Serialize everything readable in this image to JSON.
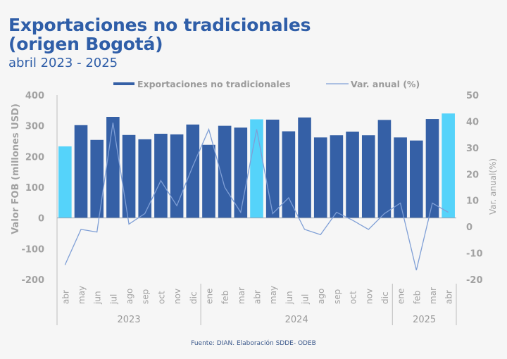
{
  "header": {
    "title_line1": "Exportaciones no tradicionales",
    "title_line2": "(origen Bogotá)",
    "subtitle": "abril 2023 - 2025"
  },
  "source": "Fuente: DIAN. Elaboración SDDE- ODEB",
  "chart_data": {
    "type": "bar",
    "title": "Exportaciones no tradicionales (origen Bogotá)",
    "subtitle": "abril 2023 - 2025",
    "categories": [
      "abr",
      "may",
      "jun",
      "jul",
      "ago",
      "sep",
      "oct",
      "nov",
      "dic",
      "ene",
      "feb",
      "mar",
      "abr",
      "may",
      "jun",
      "jul",
      "ago",
      "sep",
      "oct",
      "nov",
      "dic",
      "ene",
      "feb",
      "mar",
      "abr"
    ],
    "year_groups": [
      {
        "label": "2023",
        "count": 9
      },
      {
        "label": "2024",
        "count": 12
      },
      {
        "label": "2025",
        "count": 4
      }
    ],
    "highlight_indices": [
      0,
      12,
      24
    ],
    "colors": {
      "bar": "#3560a6",
      "highlight": "#55d3fa",
      "line": "#7f9fd6",
      "axis_text": "#a2a2a2"
    },
    "series": [
      {
        "name": "Exportaciones no tradicionales",
        "type": "bar",
        "axis": "left",
        "values": [
          233,
          302,
          254,
          329,
          270,
          256,
          274,
          272,
          304,
          238,
          300,
          294,
          321,
          320,
          282,
          327,
          262,
          269,
          281,
          269,
          319,
          262,
          252,
          322,
          340
        ]
      },
      {
        "name": "Var. anual (%)",
        "type": "line",
        "axis": "right",
        "values": [
          -14.5,
          -1,
          -2,
          39.5,
          1,
          5,
          17.5,
          8,
          23,
          37,
          15,
          5.5,
          37,
          5,
          11,
          -1,
          -3,
          5.5,
          2.5,
          -1,
          5,
          9,
          -16.5,
          9,
          5.5
        ]
      }
    ],
    "ylabel": "Valor FOB (millones USD)",
    "ylim": [
      -200,
      400
    ],
    "yticks": [
      -200,
      -100,
      0,
      100,
      200,
      300,
      400
    ],
    "y2label": "Var. anual(%)",
    "y2lim": [
      -20,
      50
    ],
    "y2ticks": [
      -20,
      -10,
      0,
      10,
      20,
      30,
      40,
      50
    ],
    "legend_position": "top",
    "grid": false
  }
}
